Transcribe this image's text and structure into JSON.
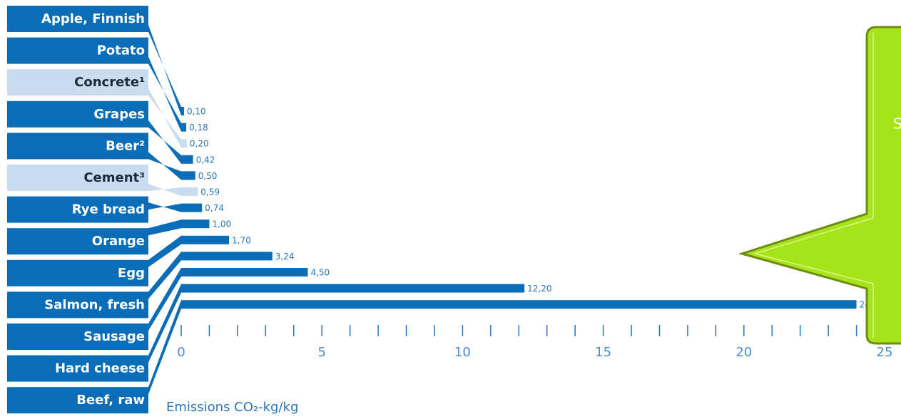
{
  "chart_data": {
    "type": "bar",
    "orientation": "horizontal",
    "categories": [
      "Apple, Finnish",
      "Potato",
      "Concrete¹",
      "Grapes",
      "Beer²",
      "Cement³",
      "Rye bread",
      "Orange",
      "Egg",
      "Salmon, fresh",
      "Sausage",
      "Hard cheese",
      "Beef, raw"
    ],
    "values": [
      0.1,
      0.18,
      0.2,
      0.42,
      0.5,
      0.59,
      0.74,
      1.0,
      1.7,
      3.24,
      4.5,
      12.2,
      24.0
    ],
    "value_labels": [
      "0,10",
      "0,18",
      "0,20",
      "0,42",
      "0,50",
      "0,59",
      "0,74",
      "1,00",
      "1,70",
      "3,24",
      "4,50",
      "12,20",
      "24,00"
    ],
    "colors": [
      "#0b6db7",
      "#0b6db7",
      "#c9dcf0",
      "#0b6db7",
      "#0b6db7",
      "#c9dcf0",
      "#0b6db7",
      "#0b6db7",
      "#0b6db7",
      "#0b6db7",
      "#0b6db7",
      "#0b6db7",
      "#0b6db7"
    ],
    "xlim": [
      0,
      25
    ],
    "xticks": [
      0,
      5,
      10,
      15,
      20,
      25
    ],
    "minor_xticks": [
      0,
      1,
      2,
      3,
      4,
      5,
      6,
      7,
      8,
      9,
      10,
      11,
      12,
      13,
      14,
      15,
      16,
      17,
      18,
      19,
      20,
      21,
      22,
      23,
      24,
      25
    ],
    "xlabel": "Emissions CO₂-kg/kg",
    "annotation": "S"
  }
}
